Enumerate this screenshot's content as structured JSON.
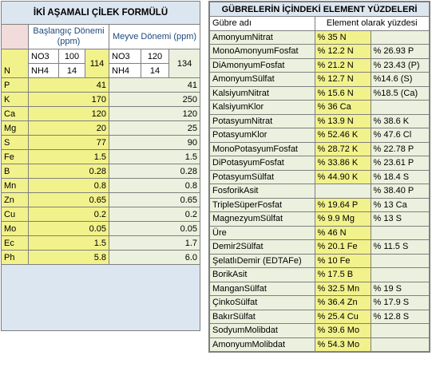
{
  "left": {
    "title": "İKİ AŞAMALI ÇİLEK FORMÜLÜ",
    "stage1": "Başlangıç Dönemi (ppm)",
    "stage2": "Meyve Dönemi (ppm)",
    "n_label": "N",
    "no3_label": "NO3",
    "nh4_label": "NH4",
    "stage1_no3": "100",
    "stage1_nh4": "14",
    "stage1_total": "114",
    "stage2_no3": "120",
    "stage2_nh4": "14",
    "stage2_total": "134",
    "rows": [
      {
        "el": "P",
        "v1": "41",
        "v2": "41"
      },
      {
        "el": "K",
        "v1": "170",
        "v2": "250"
      },
      {
        "el": "Ca",
        "v1": "120",
        "v2": "120"
      },
      {
        "el": "Mg",
        "v1": "20",
        "v2": "25"
      },
      {
        "el": "S",
        "v1": "77",
        "v2": "90"
      },
      {
        "el": "Fe",
        "v1": "1.5",
        "v2": "1.5"
      },
      {
        "el": "B",
        "v1": "0.28",
        "v2": "0.28"
      },
      {
        "el": "Mn",
        "v1": "0.8",
        "v2": "0.8"
      },
      {
        "el": "Zn",
        "v1": "0.65",
        "v2": "0.65"
      },
      {
        "el": "Cu",
        "v1": "0.2",
        "v2": "0.2"
      },
      {
        "el": "Mo",
        "v1": "0.05",
        "v2": "0.05"
      },
      {
        "el": "Ec",
        "v1": "1.5",
        "v2": "1.7"
      },
      {
        "el": "Ph",
        "v1": "5.8",
        "v2": "6.0"
      }
    ]
  },
  "right": {
    "title": "GÜBRELERİN İÇİNDEKİ ELEMENT YÜZDELERİ",
    "col1": "Gübre adı",
    "col2": "Element olarak yüzdesi",
    "rows": [
      {
        "name": "AmonyumNitrat",
        "p1": "% 35  N",
        "p2": ""
      },
      {
        "name": "MonoAmonyumFosfat",
        "p1": "% 12.2  N",
        "p2": "% 26.93 P"
      },
      {
        "name": "DiAmonyumFosfat",
        "p1": "% 21.2  N",
        "p2": "% 23.43 (P)"
      },
      {
        "name": "AmonyumSülfat",
        "p1": "% 12.7  N",
        "p2": "%14.6  (S)"
      },
      {
        "name": "KalsiyumNitrat",
        "p1": "% 15.6  N",
        "p2": "%18.5  (Ca)"
      },
      {
        "name": "KalsiyumKlor",
        "p1": "% 36   Ca",
        "p2": ""
      },
      {
        "name": "PotasyumNitrat",
        "p1": "% 13.9  N",
        "p2": "% 38.6  K"
      },
      {
        "name": "PotasyumKlor",
        "p1": "% 52.46 K",
        "p2": "% 47.6  Cl"
      },
      {
        "name": "MonoPotasyumFosfat",
        "p1": "% 28.72 K",
        "p2": "% 22.78 P"
      },
      {
        "name": "DiPotasyumFosfat",
        "p1": "% 33.86 K",
        "p2": "% 23.61 P"
      },
      {
        "name": "PotasyumSülfat",
        "p1": "% 44.90 K",
        "p2": "% 18.4  S"
      },
      {
        "name": "FosforikAsit",
        "p1": "",
        "p2": "% 38.40 P"
      },
      {
        "name": "TripleSüperFosfat",
        "p1": "% 19.64 P",
        "p2": "% 13    Ca"
      },
      {
        "name": "MagnezyumSülfat",
        "p1": "% 9.9   Mg",
        "p2": "% 13    S"
      },
      {
        "name": "Üre",
        "p1": "% 46   N",
        "p2": ""
      },
      {
        "name": "Demir2Sülfat",
        "p1": "% 20.1  Fe",
        "p2": "% 11.5  S"
      },
      {
        "name": "ŞelatlıDemir (EDTAFe)",
        "p1": "% 10   Fe",
        "p2": ""
      },
      {
        "name": "BorikAsit",
        "p1": "% 17.5  B",
        "p2": ""
      },
      {
        "name": "ManganSülfat",
        "p1": "% 32.5 Mn",
        "p2": "% 19    S"
      },
      {
        "name": "ÇinkoSülfat",
        "p1": "% 36.4  Zn",
        "p2": "% 17.9  S"
      },
      {
        "name": "BakırSülfat",
        "p1": "% 25.4  Cu",
        "p2": "% 12.8  S"
      },
      {
        "name": "SodyumMolibdat",
        "p1": "% 39.6  Mo",
        "p2": ""
      },
      {
        "name": "AmonyumMolibdat",
        "p1": "% 54.3  Mo",
        "p2": ""
      }
    ]
  }
}
